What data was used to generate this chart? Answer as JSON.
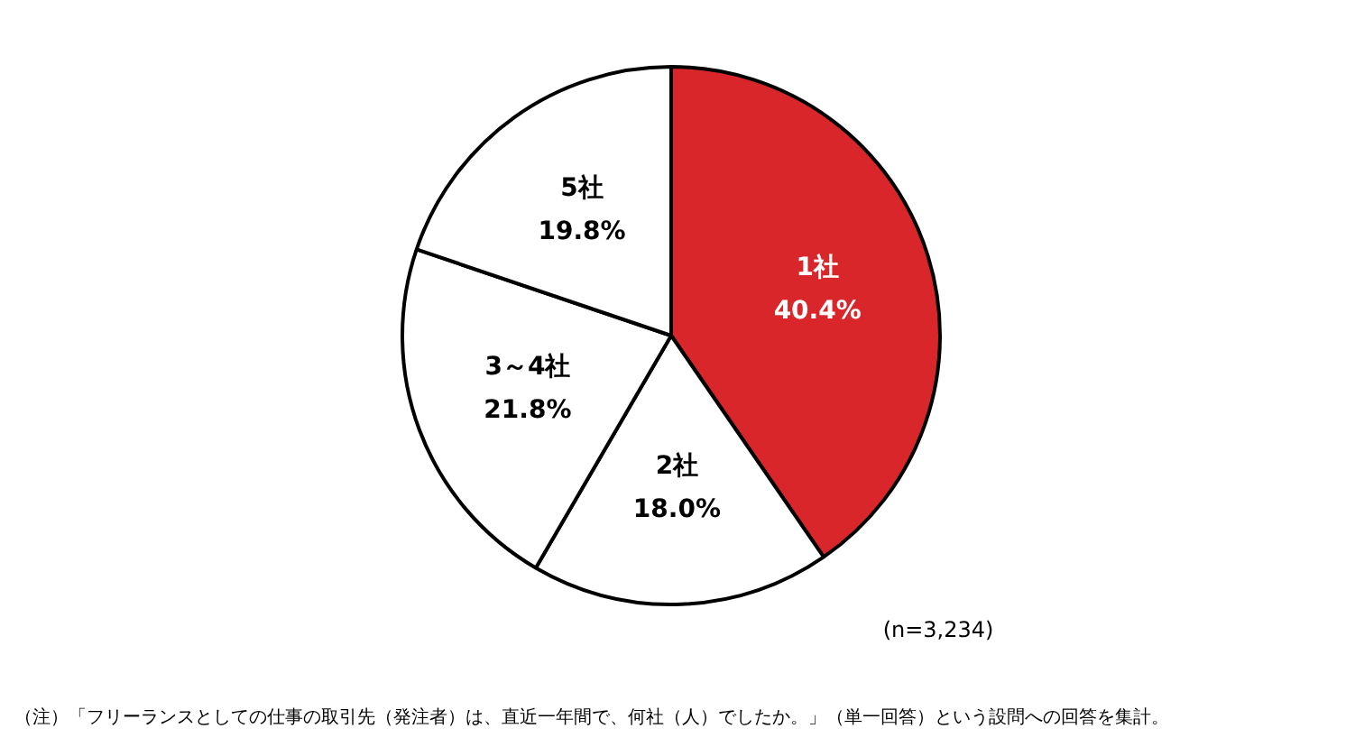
{
  "chart_data": {
    "type": "pie",
    "categories": [
      "1社",
      "2社",
      "3～4社",
      "5社"
    ],
    "values": [
      40.4,
      18.0,
      21.8,
      19.8
    ],
    "value_labels": [
      "40.4%",
      "18.0%",
      "21.8%",
      "19.8%"
    ],
    "colors": [
      "#d9262a",
      "#ffffff",
      "#ffffff",
      "#ffffff"
    ],
    "legend": false,
    "annotations": [
      "(n=3,234)",
      "（注）「フリーランスとしての仕事の取引先（発注者）は、直近一年間で、何社（人）でしたか。」（単一回答）という設問への回答を集計。"
    ]
  }
}
